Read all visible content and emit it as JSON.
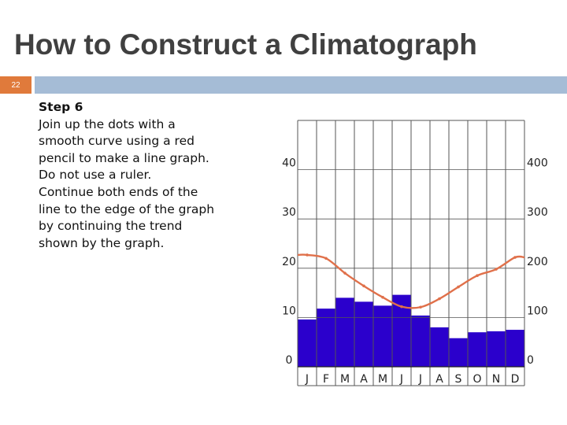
{
  "slide": {
    "title": "How to Construct a Climatograph",
    "slide_number": "22",
    "accent_color": "#e07a3b",
    "bar_color": "#a5bcd6"
  },
  "instructions": {
    "heading": "Step 6",
    "lines": [
      "Join up the dots with a",
      "smooth curve using a red",
      "pencil to make a line graph.",
      "Do not use a ruler.",
      "Continue both ends of the",
      "line to the edge of the graph",
      "by continuing the trend",
      "shown by the graph."
    ]
  },
  "chart_data": {
    "type": "bar",
    "categories": [
      "J",
      "F",
      "M",
      "A",
      "M",
      "J",
      "J",
      "A",
      "S",
      "O",
      "N",
      "D"
    ],
    "series": [
      {
        "type": "bar",
        "axis": "right",
        "color": "#2b00cc",
        "values": [
          96,
          118,
          140,
          132,
          124,
          146,
          104,
          80,
          58,
          70,
          72,
          75
        ]
      },
      {
        "type": "line",
        "axis": "left",
        "color": "#e0704a",
        "values": [
          22.7,
          22.0,
          19.0,
          16.4,
          14.1,
          12.2,
          12.1,
          13.8,
          16.2,
          18.5,
          19.8,
          22.2
        ]
      }
    ],
    "left_axis": {
      "ticks": [
        0,
        10,
        20,
        30,
        40
      ],
      "range": [
        0,
        50
      ]
    },
    "right_axis": {
      "ticks": [
        0,
        100,
        200,
        300,
        400
      ],
      "range": [
        0,
        500
      ]
    },
    "grid": true,
    "colors": {
      "bar": "#2b00cc",
      "line": "#e0704a",
      "grid": "#555555"
    }
  }
}
